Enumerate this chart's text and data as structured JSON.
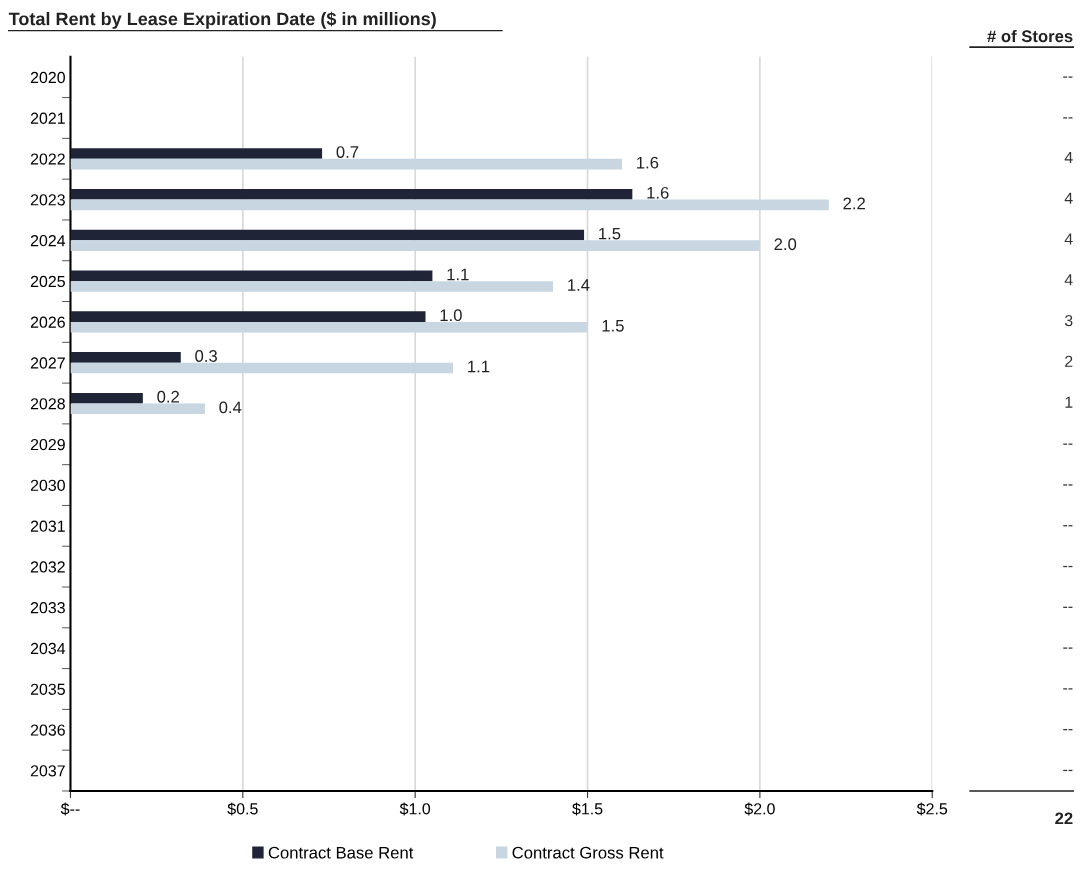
{
  "chart_data": {
    "type": "bar",
    "orientation": "horizontal",
    "title": "Total Rent by Lease Expiration Date ($ in millions)",
    "categories": [
      "2020",
      "2021",
      "2022",
      "2023",
      "2024",
      "2025",
      "2026",
      "2027",
      "2028",
      "2029",
      "2030",
      "2031",
      "2032",
      "2033",
      "2034",
      "2035",
      "2036",
      "2037"
    ],
    "series": [
      {
        "name": "Contract Base Rent",
        "color": "#1f2436",
        "values": [
          null,
          null,
          0.73,
          1.63,
          1.49,
          1.05,
          1.03,
          0.32,
          0.21,
          null,
          null,
          null,
          null,
          null,
          null,
          null,
          null,
          null
        ],
        "value_labels": [
          null,
          null,
          "0.7",
          "1.6",
          "1.5",
          "1.1",
          "1.0",
          "0.3",
          "0.2",
          null,
          null,
          null,
          null,
          null,
          null,
          null,
          null,
          null
        ]
      },
      {
        "name": "Contract Gross Rent",
        "color": "#c8d6e1",
        "values": [
          null,
          null,
          1.6,
          2.2,
          2.0,
          1.4,
          1.5,
          1.11,
          0.39,
          null,
          null,
          null,
          null,
          null,
          null,
          null,
          null,
          null
        ],
        "value_labels": [
          null,
          null,
          "1.6",
          "2.2",
          "2.0",
          "1.4",
          "1.5",
          "1.1",
          "0.4",
          null,
          null,
          null,
          null,
          null,
          null,
          null,
          null,
          null
        ]
      }
    ],
    "xlim": [
      0,
      2.5
    ],
    "xticks": [
      {
        "value": 0,
        "label": "$--"
      },
      {
        "value": 0.5,
        "label": "$0.5"
      },
      {
        "value": 1.0,
        "label": "$1.0"
      },
      {
        "value": 1.5,
        "label": "$1.5"
      },
      {
        "value": 2.0,
        "label": "$2.0"
      },
      {
        "value": 2.5,
        "label": "$2.5"
      }
    ],
    "grid": "x",
    "legend": "bottom",
    "annotations": [
      "# of Stores",
      "--",
      "--",
      "4",
      "4",
      "4",
      "4",
      "3",
      "2",
      "1",
      "--",
      "--",
      "--",
      "--",
      "--",
      "--",
      "--",
      "--",
      "--",
      "22"
    ]
  }
}
